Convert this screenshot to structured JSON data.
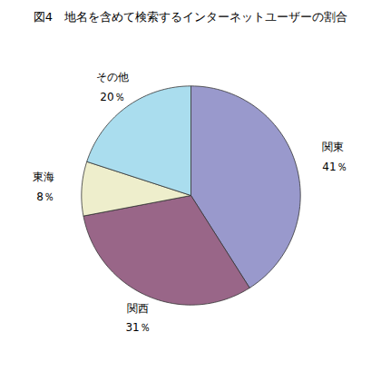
{
  "chart_data": {
    "type": "pie",
    "title": "図4　地名を含めて検索するインターネットユーザーの割合",
    "categories": [
      "関東",
      "関西",
      "東海",
      "その他"
    ],
    "values": [
      41,
      31,
      8,
      20
    ],
    "value_labels": [
      "41％",
      "31％",
      "8％",
      "20％"
    ],
    "colors": [
      "#9999cc",
      "#996688",
      "#eeeecc",
      "#aaddee"
    ],
    "data_labels": true
  }
}
